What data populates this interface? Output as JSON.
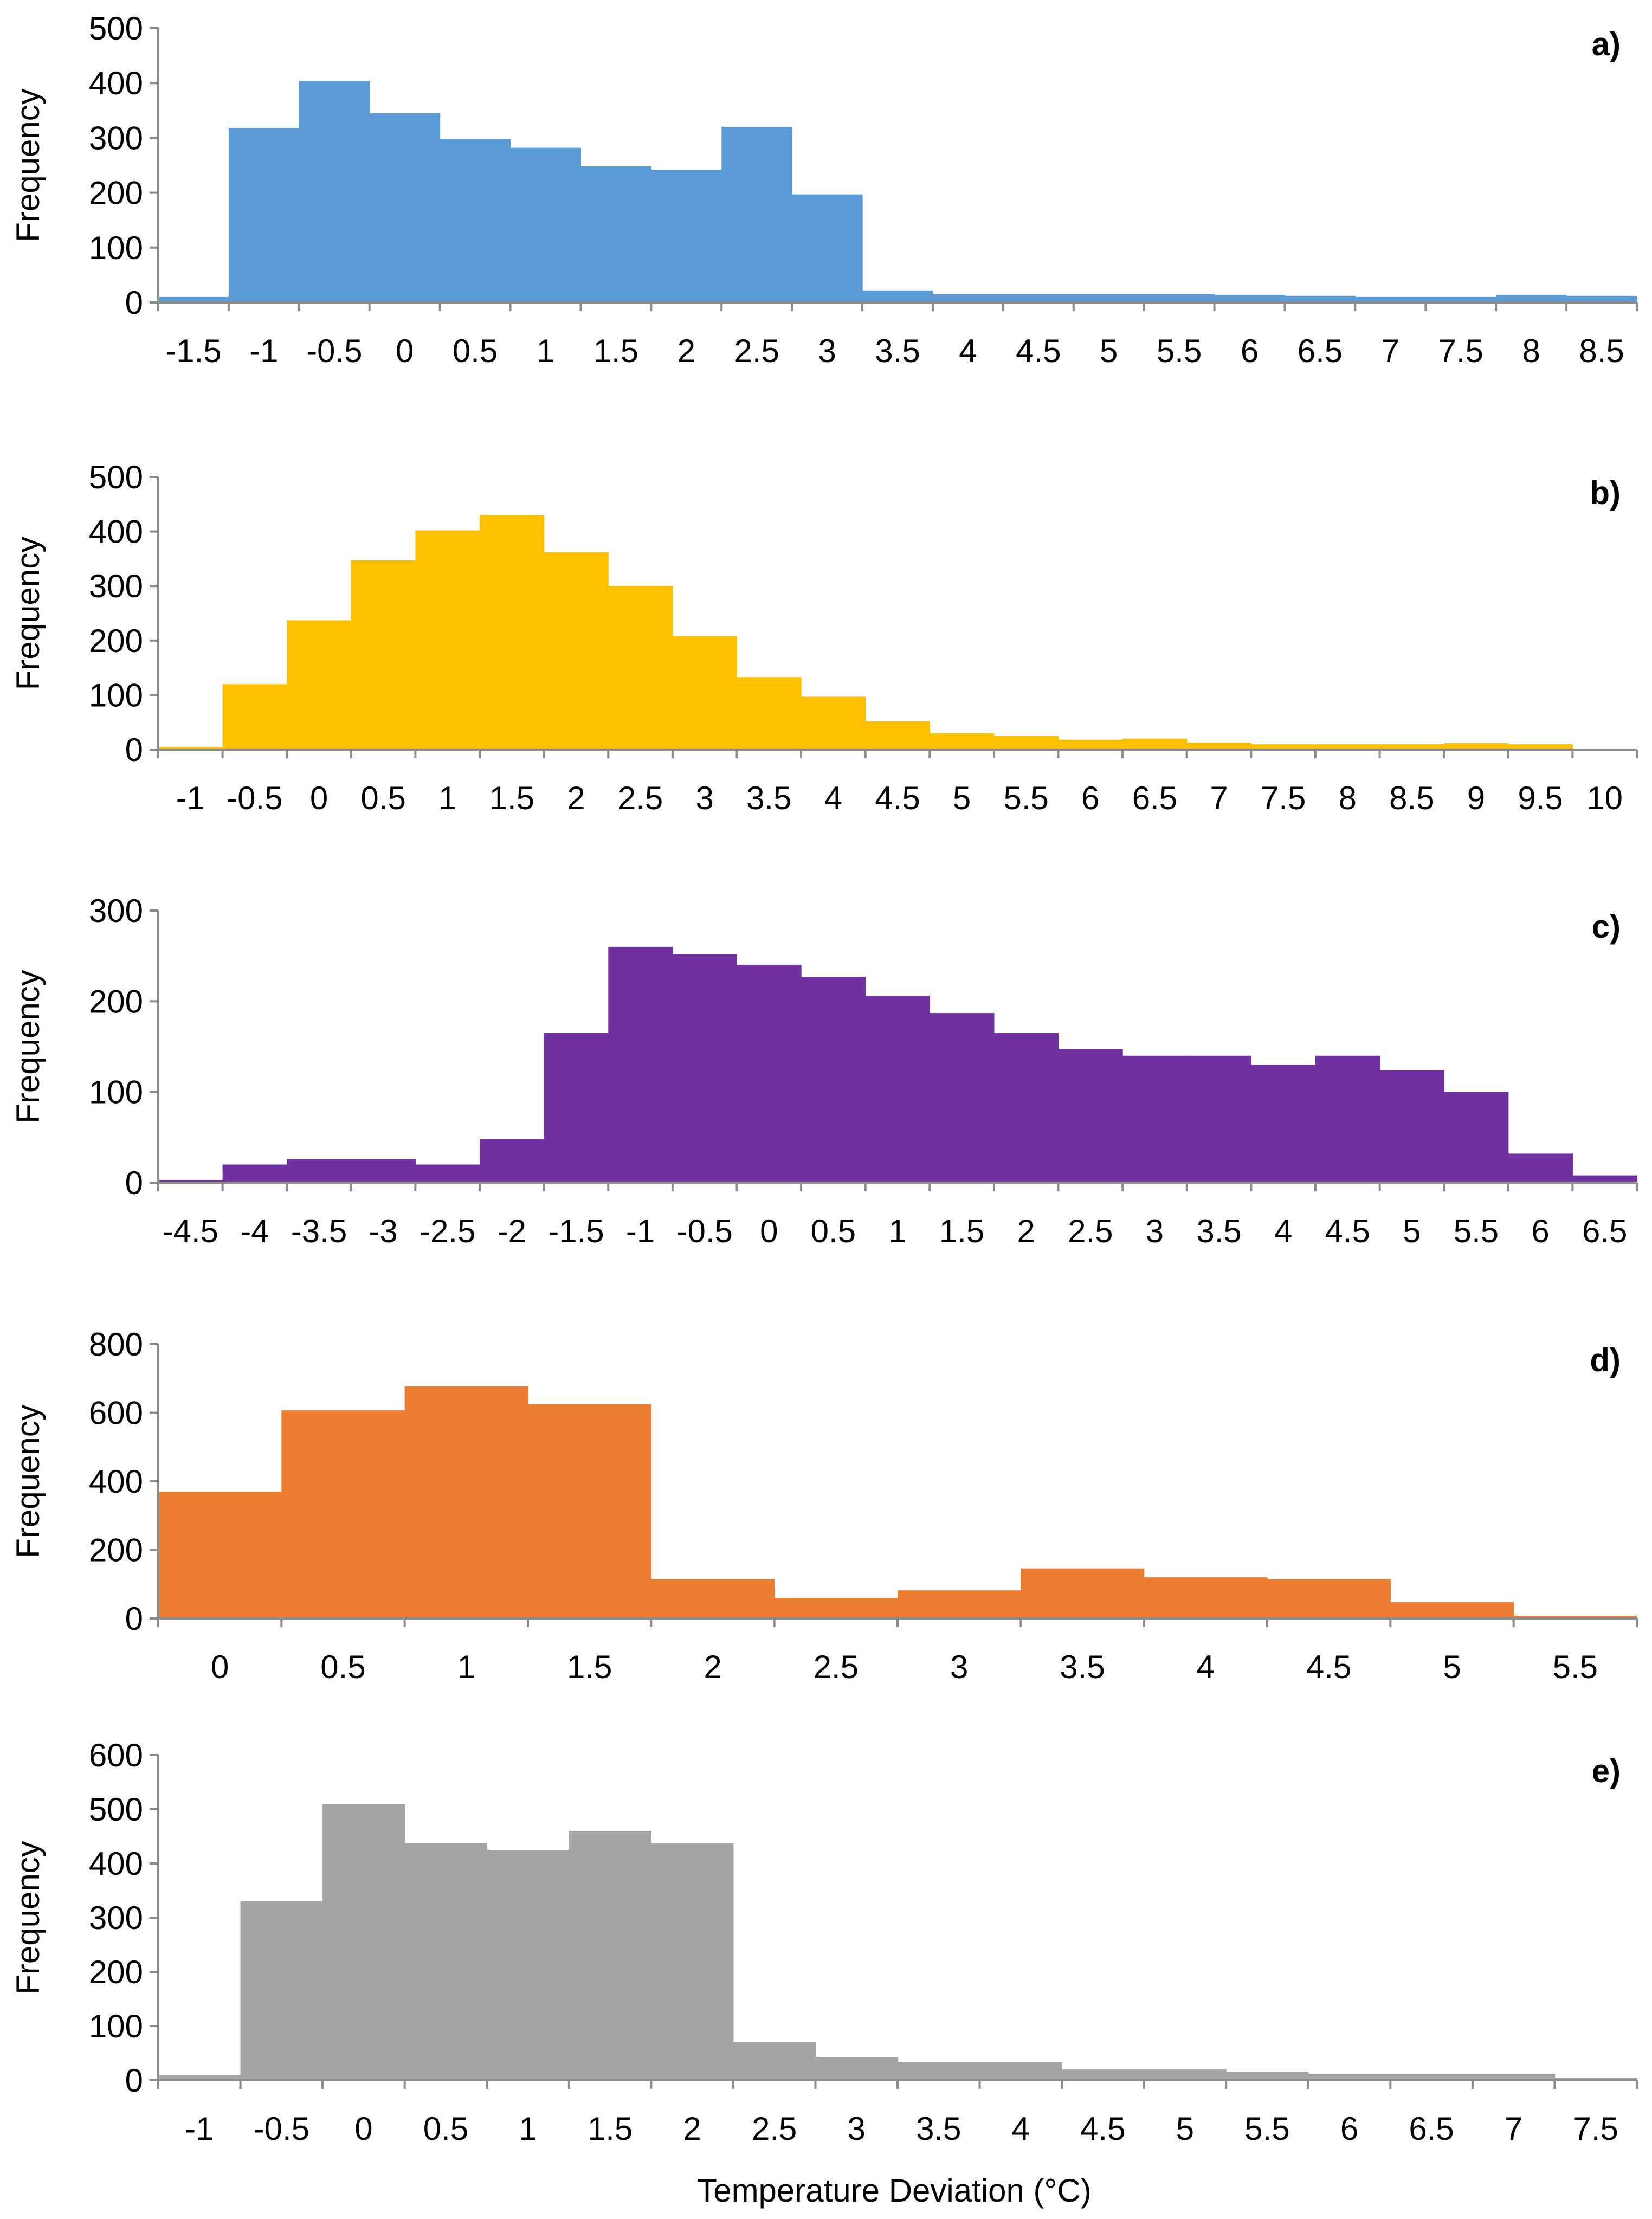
{
  "figure": {
    "xlabel": "Temperature Deviation (°C)"
  },
  "chart_data": [
    {
      "type": "bar",
      "panel_label": "a)",
      "ylabel": "Frequency",
      "ylim": [
        0,
        500
      ],
      "yticks": [
        "0",
        "100",
        "200",
        "300",
        "400",
        "500"
      ],
      "categories": [
        "-1.5",
        "-1",
        "-0.5",
        "0",
        "0.5",
        "1",
        "1.5",
        "2",
        "2.5",
        "3",
        "3.5",
        "4",
        "4.5",
        "5",
        "5.5",
        "6",
        "6.5",
        "7",
        "7.5",
        "8",
        "8.5"
      ],
      "values": [
        10,
        318,
        404,
        345,
        298,
        282,
        248,
        242,
        320,
        197,
        22,
        15,
        15,
        15,
        15,
        14,
        12,
        10,
        10,
        14,
        12
      ],
      "color": "#5B9BD5"
    },
    {
      "type": "bar",
      "panel_label": "b)",
      "ylabel": "Frequency",
      "ylim": [
        0,
        500
      ],
      "yticks": [
        "0",
        "100",
        "200",
        "300",
        "400",
        "500"
      ],
      "categories": [
        "-1",
        "-0.5",
        "0",
        "0.5",
        "1",
        "1.5",
        "2",
        "2.5",
        "3",
        "3.5",
        "4",
        "4.5",
        "5",
        "5.5",
        "6",
        "6.5",
        "7",
        "7.5",
        "8",
        "8.5",
        "9",
        "9.5",
        "10"
      ],
      "values": [
        5,
        120,
        237,
        347,
        402,
        430,
        362,
        300,
        208,
        133,
        97,
        52,
        30,
        25,
        18,
        20,
        13,
        10,
        10,
        10,
        12,
        10,
        0
      ],
      "color": "#FFC000"
    },
    {
      "type": "bar",
      "panel_label": "c)",
      "ylabel": "Frequency",
      "ylim": [
        0,
        300
      ],
      "yticks": [
        "0",
        "100",
        "200",
        "300"
      ],
      "categories": [
        "-4.5",
        "-4",
        "-3.5",
        "-3",
        "-2.5",
        "-2",
        "-1.5",
        "-1",
        "-0.5",
        "0",
        "0.5",
        "1",
        "1.5",
        "2",
        "2.5",
        "3",
        "3.5",
        "4",
        "4.5",
        "5",
        "5.5",
        "6",
        "6.5"
      ],
      "values": [
        3,
        20,
        26,
        26,
        20,
        48,
        165,
        260,
        252,
        240,
        227,
        206,
        187,
        165,
        147,
        140,
        140,
        130,
        140,
        124,
        100,
        32,
        8
      ],
      "color": "#7030A0"
    },
    {
      "type": "bar",
      "panel_label": "d)",
      "ylabel": "Frequency",
      "ylim": [
        0,
        800
      ],
      "yticks": [
        "0",
        "200",
        "400",
        "600",
        "800"
      ],
      "categories": [
        "0",
        "0.5",
        "1",
        "1.5",
        "2",
        "2.5",
        "3",
        "3.5",
        "4",
        "4.5",
        "5",
        "5.5"
      ],
      "values": [
        370,
        607,
        677,
        625,
        115,
        60,
        82,
        146,
        120,
        115,
        48,
        8
      ],
      "color": "#ED7D31"
    },
    {
      "type": "bar",
      "panel_label": "e)",
      "ylabel": "Frequency",
      "ylim": [
        0,
        600
      ],
      "yticks": [
        "0",
        "100",
        "200",
        "300",
        "400",
        "500",
        "600"
      ],
      "categories": [
        "-1",
        "-0.5",
        "0",
        "0.5",
        "1",
        "1.5",
        "2",
        "2.5",
        "3",
        "3.5",
        "4",
        "4.5",
        "5",
        "5.5",
        "6",
        "6.5",
        "7",
        "7.5"
      ],
      "values": [
        10,
        330,
        510,
        438,
        425,
        460,
        437,
        70,
        43,
        33,
        33,
        20,
        20,
        15,
        12,
        12,
        12,
        5
      ],
      "color": "#A5A5A5"
    }
  ]
}
